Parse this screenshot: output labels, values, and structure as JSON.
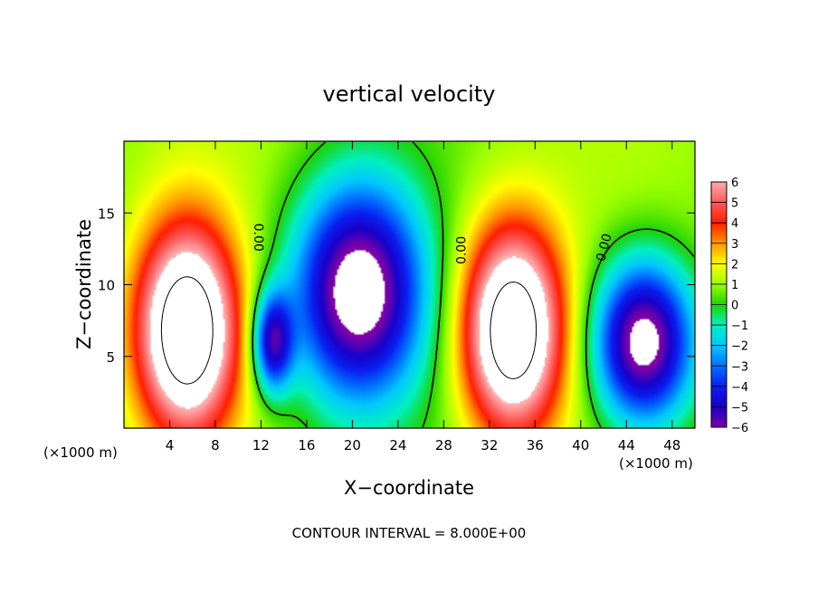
{
  "chart_data": {
    "type": "heatmap",
    "title": "vertical velocity",
    "xlabel": "X−coordinate",
    "ylabel": "Z−coordinate",
    "x_unit_label": "(×1000 m)",
    "y_unit_label": "(×1000 m)",
    "xlim": [
      0,
      50
    ],
    "ylim": [
      0,
      20
    ],
    "x_ticks": [
      4,
      8,
      12,
      16,
      20,
      24,
      28,
      32,
      36,
      40,
      44,
      48
    ],
    "y_ticks": [
      5,
      10,
      15
    ],
    "footer": "CONTOUR INTERVAL = 8.000E+00",
    "colorbar": {
      "ticks": [
        6,
        5,
        4,
        3,
        2,
        1,
        0,
        -1,
        -2,
        -3,
        -4,
        -5,
        -6
      ],
      "tick_labels": [
        "6",
        "5",
        "4",
        "3",
        "2",
        "1",
        "0",
        "−1",
        "−2",
        "−3",
        "−4",
        "−5",
        "−6"
      ]
    },
    "contour_labels": [
      {
        "text": "0.00",
        "x": 11.8,
        "y": 13.3,
        "rotate": 90
      },
      {
        "text": "0.00",
        "x": 29.5,
        "y": 12.4,
        "rotate": -90
      },
      {
        "text": "0.00",
        "x": 42.0,
        "y": 12.6,
        "rotate": -75
      }
    ],
    "features": [
      {
        "sign": 1,
        "x": 5.5,
        "y": 6.8,
        "rx": 5.0,
        "ry": 8.2,
        "amp": 9,
        "label": "updraft-left"
      },
      {
        "sign": 1,
        "x": 34.0,
        "y": 6.8,
        "rx": 5.0,
        "ry": 8.2,
        "amp": 9,
        "label": "updraft-right"
      },
      {
        "sign": -1,
        "x": 20.5,
        "y": 9.5,
        "rx": 6.5,
        "ry": 8.5,
        "amp": 8,
        "label": "downdraft-center"
      },
      {
        "sign": -1,
        "x": 45.5,
        "y": 6.0,
        "rx": 5.0,
        "ry": 6.5,
        "amp": 8,
        "label": "downdraft-right"
      },
      {
        "sign": -1,
        "x": 13.0,
        "y": 6.0,
        "rx": 2.0,
        "ry": 4.0,
        "amp": 6,
        "label": "downdraft-small"
      }
    ]
  }
}
